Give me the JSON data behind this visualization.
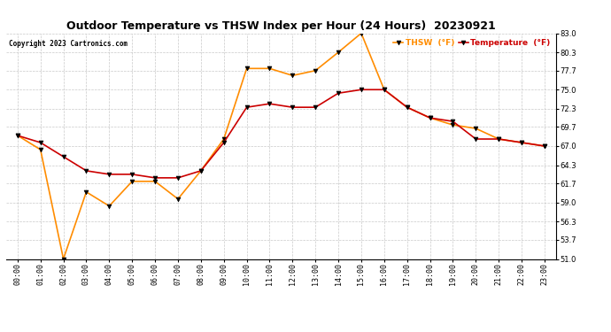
{
  "title": "Outdoor Temperature vs THSW Index per Hour (24 Hours)  20230921",
  "copyright": "Copyright 2023 Cartronics.com",
  "hours": [
    "00:00",
    "01:00",
    "02:00",
    "03:00",
    "04:00",
    "05:00",
    "06:00",
    "07:00",
    "08:00",
    "09:00",
    "10:00",
    "11:00",
    "12:00",
    "13:00",
    "14:00",
    "15:00",
    "16:00",
    "17:00",
    "18:00",
    "19:00",
    "20:00",
    "21:00",
    "22:00",
    "23:00"
  ],
  "temperature": [
    68.5,
    67.5,
    65.5,
    63.5,
    63.0,
    63.0,
    62.5,
    62.5,
    63.5,
    67.5,
    72.5,
    73.0,
    72.5,
    72.5,
    74.5,
    75.0,
    75.0,
    72.5,
    71.0,
    70.5,
    68.0,
    68.0,
    67.5,
    67.0
  ],
  "thsw": [
    68.5,
    66.5,
    51.0,
    60.5,
    58.5,
    62.0,
    62.0,
    59.5,
    63.5,
    68.0,
    78.0,
    78.0,
    77.0,
    77.7,
    80.3,
    83.0,
    75.0,
    72.5,
    71.0,
    70.0,
    69.5,
    68.0,
    67.5,
    67.0
  ],
  "thsw_color": "#FF8C00",
  "temp_color": "#CC0000",
  "marker_color": "#000000",
  "ylim_min": 51.0,
  "ylim_max": 83.0,
  "yticks": [
    51.0,
    53.7,
    56.3,
    59.0,
    61.7,
    64.3,
    67.0,
    69.7,
    72.3,
    75.0,
    77.7,
    80.3,
    83.0
  ],
  "background_color": "#ffffff",
  "grid_color": "#bbbbbb",
  "title_fontsize": 9,
  "tick_fontsize": 6,
  "legend_thsw": "THSW  (°F)",
  "legend_temp": "Temperature  (°F)"
}
